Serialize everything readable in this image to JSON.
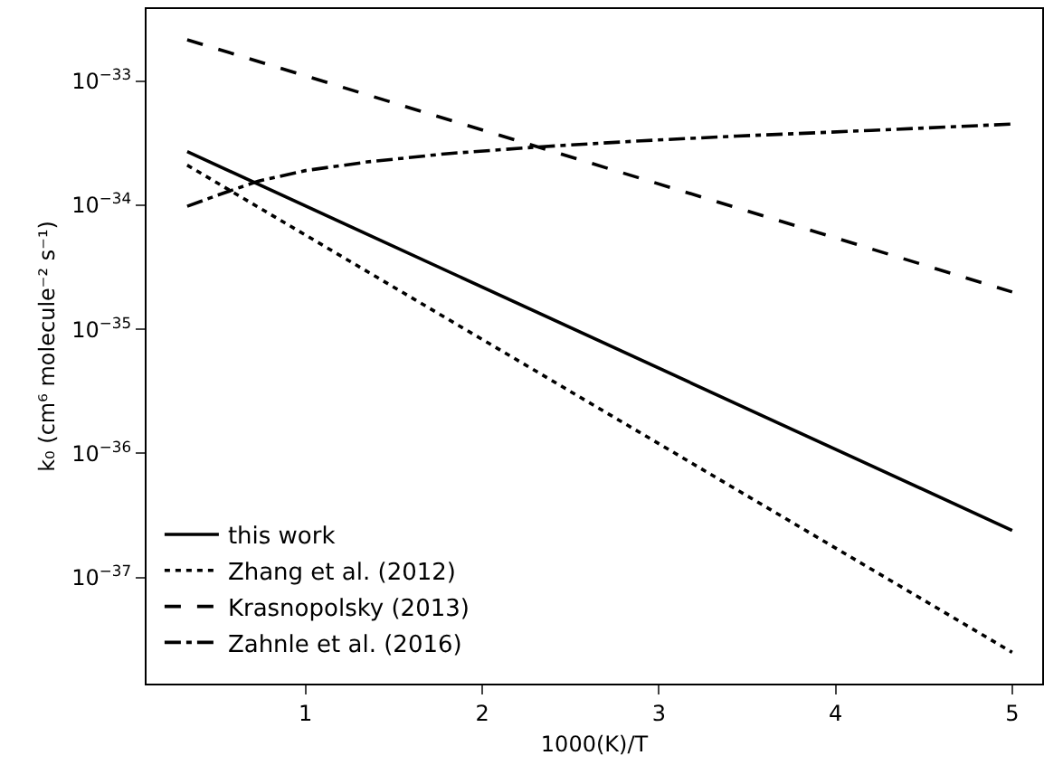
{
  "chart_data": {
    "type": "line",
    "xlabel": "1000(K)/T",
    "ylabel": "k₀ (cm⁶ molecule⁻² s⁻¹)",
    "log": "y",
    "grid": false,
    "legend": "bottom left",
    "marker": "none",
    "xlim": [
      0.1,
      5.17
    ],
    "xticks": [
      1,
      2,
      3,
      4,
      5
    ],
    "ylim": [
      1.4e-38,
      3.8e-33
    ],
    "yticks": [
      {
        "value": 1e-33,
        "label": "10$^{−33}$"
      },
      {
        "value": 1e-34,
        "label": "10$^{−34}$"
      },
      {
        "value": 1e-35,
        "label": "10$^{−35}$"
      },
      {
        "value": 1e-36,
        "label": "10$^{−36}$"
      },
      {
        "value": 1e-37,
        "label": "10$^{−37}$"
      }
    ],
    "series": [
      {
        "name": "this work",
        "color": "#000000",
        "line_style": "solid",
        "x": [
          0.33,
          5
        ],
        "values": [
          2.7e-34,
          2.4e-37
        ]
      },
      {
        "name": "Zhang et al. (2012)",
        "color": "#000000",
        "line_style": "dotted",
        "x": [
          0.33,
          5
        ],
        "values": [
          2.1e-34,
          2.5e-38
        ]
      },
      {
        "name": "Krasnopolsky (2013)",
        "color": "#000000",
        "line_style": "dashed",
        "x": [
          0.33,
          5
        ],
        "values": [
          2.15e-33,
          2e-35
        ]
      },
      {
        "name": "Zahnle et al. (2016)",
        "color": "#000000",
        "line_style": "dashdot",
        "x": [
          0.33,
          0.5,
          0.73,
          1.0,
          1.35,
          1.8,
          2.34,
          2.9,
          3.44,
          4.2,
          5
        ],
        "values": [
          9.8e-35,
          1.2e-34,
          1.56e-34,
          1.9e-34,
          2.23e-34,
          2.6e-34,
          2.96e-34,
          3.3e-34,
          3.6e-34,
          4e-34,
          4.5e-34
        ]
      }
    ]
  }
}
